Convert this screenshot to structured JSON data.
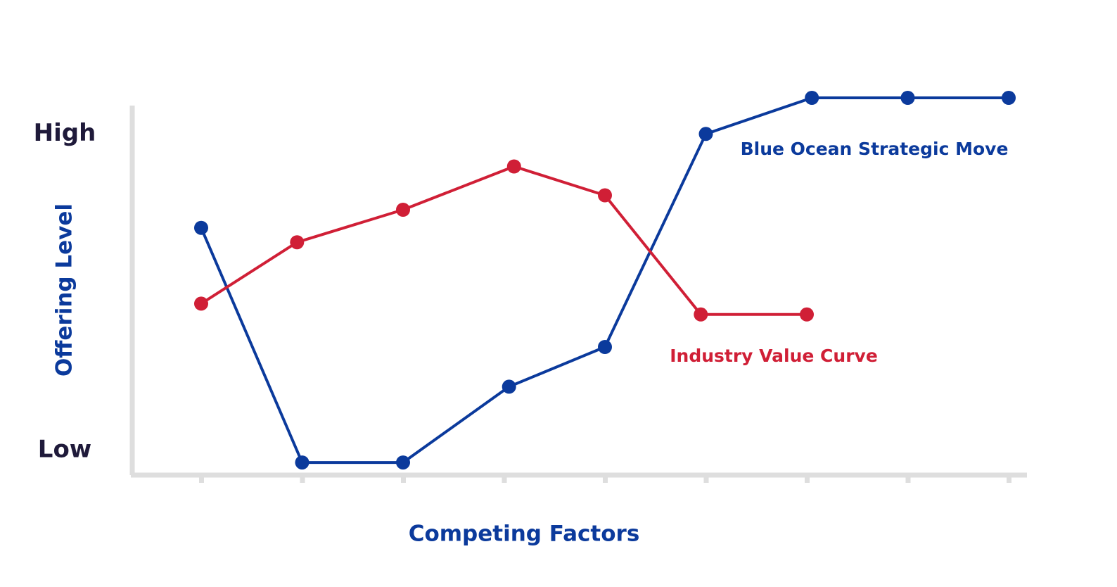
{
  "chart_data": {
    "type": "line",
    "title": "",
    "xlabel": "Competing Factors",
    "ylabel": "Offering Level",
    "y_level_labels": {
      "high": "High",
      "low": "Low"
    },
    "ylim": [
      0,
      100
    ],
    "y_label_values": {
      "high": 90,
      "low": 0
    },
    "x_ticks": [
      1,
      2,
      3,
      4,
      5,
      6,
      7,
      8,
      9
    ],
    "grid": false,
    "legend": "inline labels near lines",
    "series": [
      {
        "name": "Blue Ocean Strategic Move",
        "color": "#0b3a9c",
        "points": [
          {
            "x": 1.0,
            "y": 64
          },
          {
            "x": 2.0,
            "y": -1
          },
          {
            "x": 3.0,
            "y": -1
          },
          {
            "x": 4.05,
            "y": 20
          },
          {
            "x": 5.0,
            "y": 31
          },
          {
            "x": 6.0,
            "y": 90
          },
          {
            "x": 7.05,
            "y": 100
          },
          {
            "x": 8.0,
            "y": 100
          },
          {
            "x": 9.0,
            "y": 100
          }
        ]
      },
      {
        "name": "Industry Value Curve",
        "color": "#d01f36",
        "points": [
          {
            "x": 1.0,
            "y": 43
          },
          {
            "x": 1.95,
            "y": 60
          },
          {
            "x": 3.0,
            "y": 69
          },
          {
            "x": 4.1,
            "y": 81
          },
          {
            "x": 5.0,
            "y": 73
          },
          {
            "x": 5.95,
            "y": 40
          },
          {
            "x": 7.0,
            "y": 40
          }
        ]
      }
    ]
  }
}
